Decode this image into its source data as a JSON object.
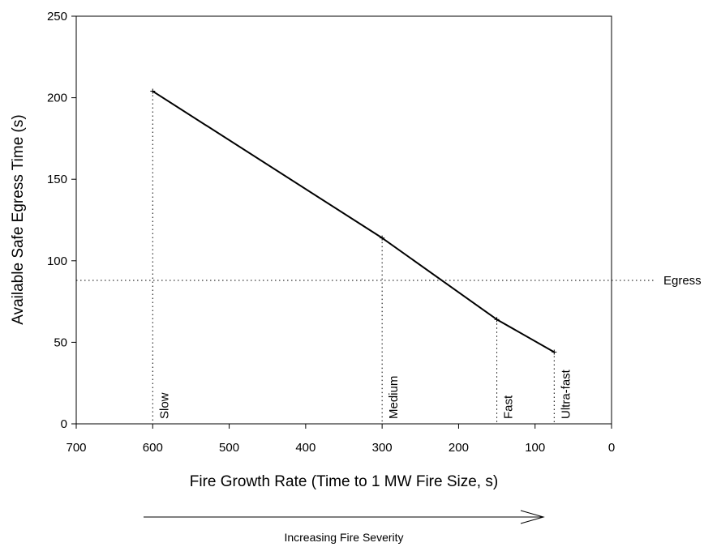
{
  "chart_data": {
    "type": "line",
    "title": "",
    "xlabel": "Fire Growth Rate (Time to 1 MW Fire Size, s)",
    "ylabel": "Available Safe Egress Time (s)",
    "xlim": [
      700,
      0
    ],
    "x_reversed": true,
    "ylim": [
      0,
      250
    ],
    "x_ticks": [
      700,
      600,
      500,
      400,
      300,
      200,
      100,
      0
    ],
    "y_ticks": [
      0,
      50,
      100,
      150,
      200,
      250
    ],
    "grid": false,
    "legend": "none",
    "series": [
      {
        "x": [
          600,
          300,
          150,
          75
        ],
        "y": [
          204,
          114,
          64,
          44
        ],
        "point_labels": [
          "Slow",
          "Medium",
          "Fast",
          "Ultra-fast"
        ]
      }
    ],
    "reference_lines": [
      {
        "axis": "y",
        "value": 88,
        "label": "Egress Time",
        "style": "dotted"
      }
    ],
    "annotations": [
      {
        "text": "Increasing Fire Severity",
        "kind": "arrow",
        "direction": "right"
      }
    ]
  }
}
